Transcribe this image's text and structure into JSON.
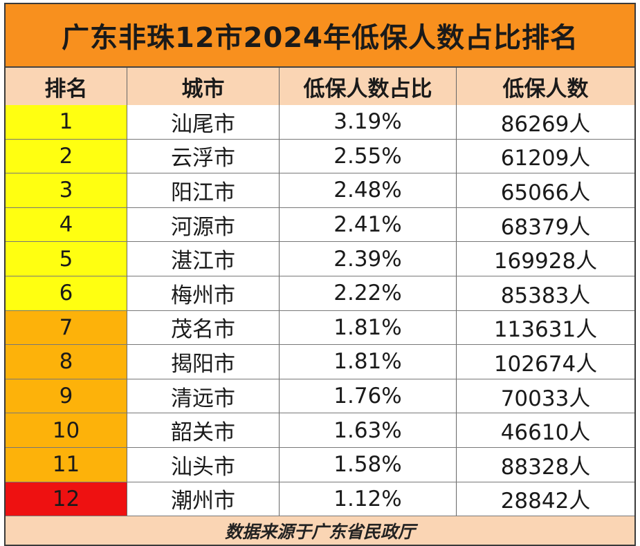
{
  "title": "广东非珠12市2024年低保人数占比排名",
  "headers": [
    "排名",
    "城市",
    "低保人数占比",
    "低保人数"
  ],
  "rows": [
    {
      "rank": "1",
      "city": "汕尾市",
      "ratio": "3.19%",
      "count": "86269人",
      "rank_color": "#ffff11"
    },
    {
      "rank": "2",
      "city": "云浮市",
      "ratio": "2.55%",
      "count": "61209人",
      "rank_color": "#ffff11"
    },
    {
      "rank": "3",
      "city": "阳江市",
      "ratio": "2.48%",
      "count": "65066人",
      "rank_color": "#ffff11"
    },
    {
      "rank": "4",
      "city": "河源市",
      "ratio": "2.41%",
      "count": "68379人",
      "rank_color": "#ffff11"
    },
    {
      "rank": "5",
      "city": "湛江市",
      "ratio": "2.39%",
      "count": "169928人",
      "rank_color": "#ffff11"
    },
    {
      "rank": "6",
      "city": "梅州市",
      "ratio": "2.22%",
      "count": "85383人",
      "rank_color": "#ffff11"
    },
    {
      "rank": "7",
      "city": "茂名市",
      "ratio": "1.81%",
      "count": "113631人",
      "rank_color": "#fdb20a"
    },
    {
      "rank": "8",
      "city": "揭阳市",
      "ratio": "1.81%",
      "count": "102674人",
      "rank_color": "#fdb20a"
    },
    {
      "rank": "9",
      "city": "清远市",
      "ratio": "1.76%",
      "count": "70033人",
      "rank_color": "#fdb20a"
    },
    {
      "rank": "10",
      "city": "韶关市",
      "ratio": "1.63%",
      "count": "46610人",
      "rank_color": "#fdb20a"
    },
    {
      "rank": "11",
      "city": "汕头市",
      "ratio": "1.58%",
      "count": "88328人",
      "rank_color": "#fdb20a"
    },
    {
      "rank": "12",
      "city": "潮州市",
      "ratio": "1.12%",
      "count": "28842人",
      "rank_color": "#ee1111"
    }
  ],
  "footer": "数据来源于广东省民政厅",
  "colors": {
    "title_bg": "#f8901e",
    "header_bg": "#fad5b4",
    "rank_top": "#ffff11",
    "rank_mid": "#fdb20a",
    "rank_last": "#ee1111"
  }
}
